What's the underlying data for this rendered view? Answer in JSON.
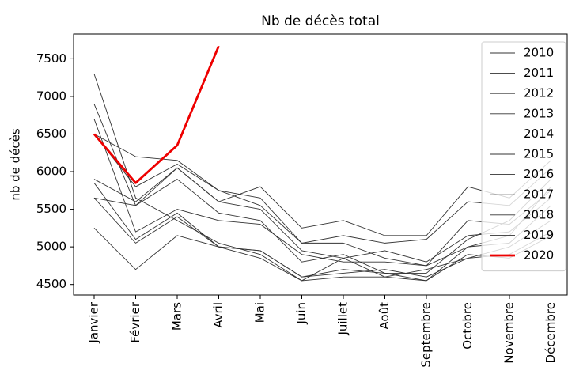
{
  "chart_data": {
    "type": "line",
    "title": "Nb de décès total",
    "y_label": "nb de décès",
    "categories": [
      "Janvier",
      "Février",
      "Mars",
      "Avril",
      "Mai",
      "Juin",
      "Juillet",
      "Août",
      "Septembre",
      "Octobre",
      "Novembre",
      "Décembre"
    ],
    "series": [
      {
        "name": "2010",
        "color": "#333333",
        "values": [
          5650,
          5050,
          5400,
          5000,
          4950,
          4600,
          4700,
          4650,
          4550,
          4900,
          4850,
          5150
        ]
      },
      {
        "name": "2011",
        "color": "#333333",
        "values": [
          5250,
          4700,
          5150,
          5000,
          4850,
          4550,
          4850,
          4600,
          4700,
          4850,
          4900,
          5200
        ]
      },
      {
        "name": "2012",
        "color": "#333333",
        "values": [
          6700,
          5200,
          5500,
          5350,
          5300,
          4900,
          4800,
          4800,
          4750,
          5000,
          5050,
          5550
        ]
      },
      {
        "name": "2013",
        "color": "#333333",
        "values": [
          5900,
          5600,
          6050,
          5600,
          5500,
          4950,
          4850,
          4950,
          4800,
          5150,
          5200,
          5650
        ]
      },
      {
        "name": "2014",
        "color": "#333333",
        "values": [
          5850,
          5100,
          5450,
          5000,
          4950,
          4600,
          4650,
          4700,
          4600,
          4850,
          5000,
          5350
        ]
      },
      {
        "name": "2015",
        "color": "#333333",
        "values": [
          6500,
          6200,
          6150,
          5750,
          5550,
          5050,
          5050,
          4850,
          4750,
          5350,
          5300,
          5750
        ]
      },
      {
        "name": "2016",
        "color": "#333333",
        "values": [
          5650,
          5550,
          5900,
          5450,
          5350,
          4800,
          4900,
          4650,
          4650,
          5100,
          5350,
          5900
        ]
      },
      {
        "name": "2017",
        "color": "#333333",
        "values": [
          7300,
          5650,
          5350,
          5050,
          4900,
          4550,
          4600,
          4600,
          4550,
          5000,
          5150,
          5800
        ]
      },
      {
        "name": "2018",
        "color": "#333333",
        "values": [
          6900,
          5550,
          6050,
          5600,
          5800,
          5250,
          5350,
          5150,
          5150,
          5800,
          5650,
          6150
        ]
      },
      {
        "name": "2019",
        "color": "#333333",
        "values": [
          6500,
          5800,
          6100,
          5750,
          5650,
          5050,
          5150,
          5050,
          5100,
          5600,
          5550,
          6050
        ]
      },
      {
        "name": "2020",
        "color": "#ee0000",
        "values": [
          6500,
          5850,
          6350,
          7670,
          null,
          null,
          null,
          null,
          null,
          null,
          null,
          null
        ]
      }
    ],
    "ylim": [
      4360,
      7830
    ],
    "yticks": [
      4500,
      5000,
      5500,
      6000,
      6500,
      7000,
      7500
    ],
    "legend": "upper right"
  }
}
